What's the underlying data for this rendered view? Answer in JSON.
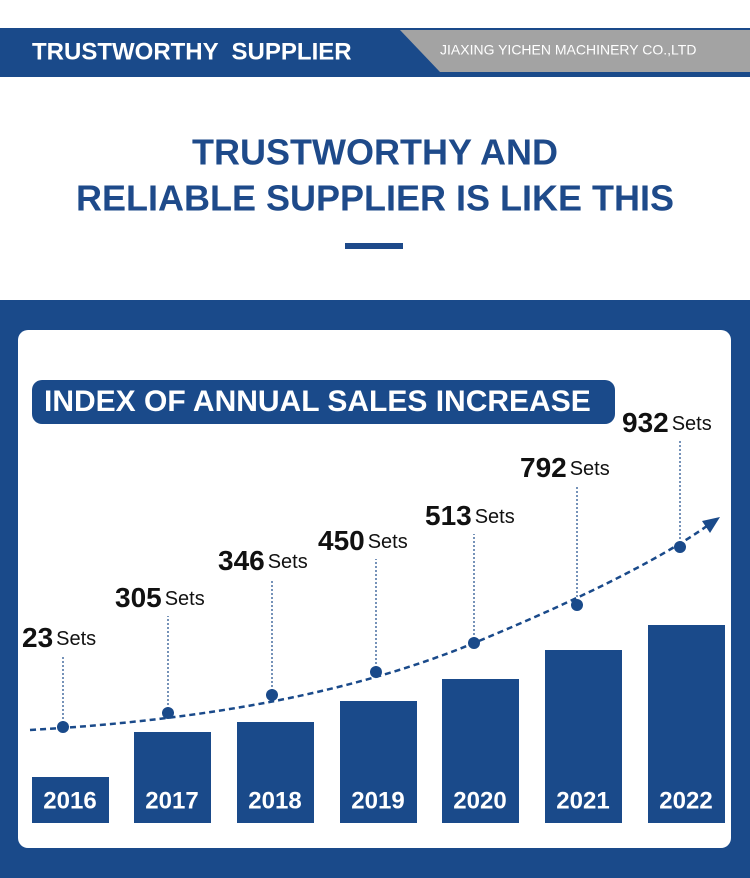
{
  "header": {
    "tag": "TRUSTWORTHY  SUPPLIER",
    "company": "JIAXING YICHEN MACHINERY CO.,LTD"
  },
  "heading": {
    "line1": "TRUSTWORTHY AND",
    "line2": "RELIABLE SUPPLIER IS LIKE THIS"
  },
  "panel": {
    "title": "INDEX OF ANNUAL SALES INCREASE",
    "unit": "Sets",
    "items": [
      {
        "year": "2016",
        "value": 23
      },
      {
        "year": "2017",
        "value": 305
      },
      {
        "year": "2018",
        "value": 346
      },
      {
        "year": "2019",
        "value": 450
      },
      {
        "year": "2020",
        "value": 513
      },
      {
        "year": "2021",
        "value": 792
      },
      {
        "year": "2022",
        "value": 932
      }
    ]
  }
}
